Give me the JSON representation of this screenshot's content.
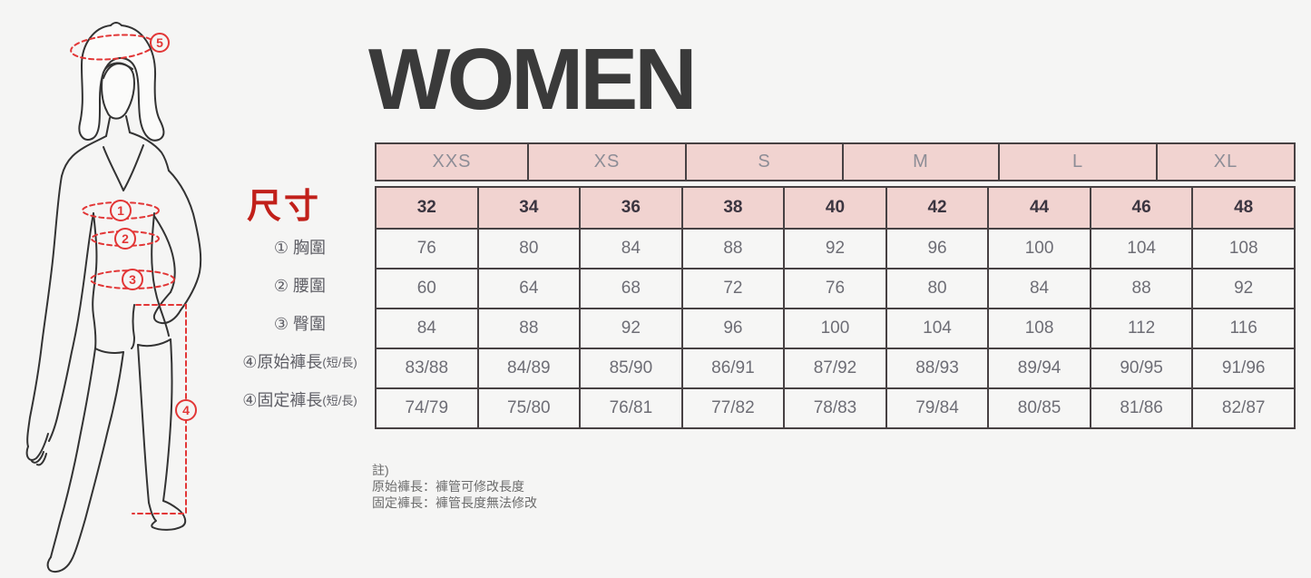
{
  "title": "WOMEN",
  "size_label": "尺寸",
  "size_table": {
    "letter_sizes": [
      "XXS",
      "XS",
      "S",
      "M",
      "L",
      "XL"
    ],
    "number_sizes": [
      "32",
      "34",
      "36",
      "38",
      "40",
      "42",
      "44",
      "46",
      "48"
    ],
    "rows": [
      {
        "label": "① 胸圍",
        "small": "",
        "values": [
          "76",
          "80",
          "84",
          "88",
          "92",
          "96",
          "100",
          "104",
          "108"
        ]
      },
      {
        "label": "② 腰圍",
        "small": "",
        "values": [
          "60",
          "64",
          "68",
          "72",
          "76",
          "80",
          "84",
          "88",
          "92"
        ]
      },
      {
        "label": "③ 臀圍",
        "small": "",
        "values": [
          "84",
          "88",
          "92",
          "96",
          "100",
          "104",
          "108",
          "112",
          "116"
        ]
      },
      {
        "label": "④原始褲長",
        "small": "(短/長)",
        "values": [
          "83/88",
          "84/89",
          "85/90",
          "86/91",
          "87/92",
          "88/93",
          "89/94",
          "90/95",
          "91/96"
        ]
      },
      {
        "label": "④固定褲長",
        "small": "(短/長)",
        "values": [
          "74/79",
          "75/80",
          "76/81",
          "77/82",
          "78/83",
          "79/84",
          "80/85",
          "81/86",
          "82/87"
        ]
      }
    ]
  },
  "notes": {
    "heading": "註)",
    "lines": [
      "原始褲長：褲管可修改長度",
      "固定褲長：褲管長度無法修改"
    ]
  },
  "figure": {
    "markers": [
      "1",
      "2",
      "3",
      "4",
      "5"
    ]
  },
  "colors": {
    "header_pink": "#f1d3d0",
    "accent_red": "#c1201a",
    "figure_red": "#e23636",
    "table_border": "#474143",
    "title_gray": "#3a3a3a"
  }
}
